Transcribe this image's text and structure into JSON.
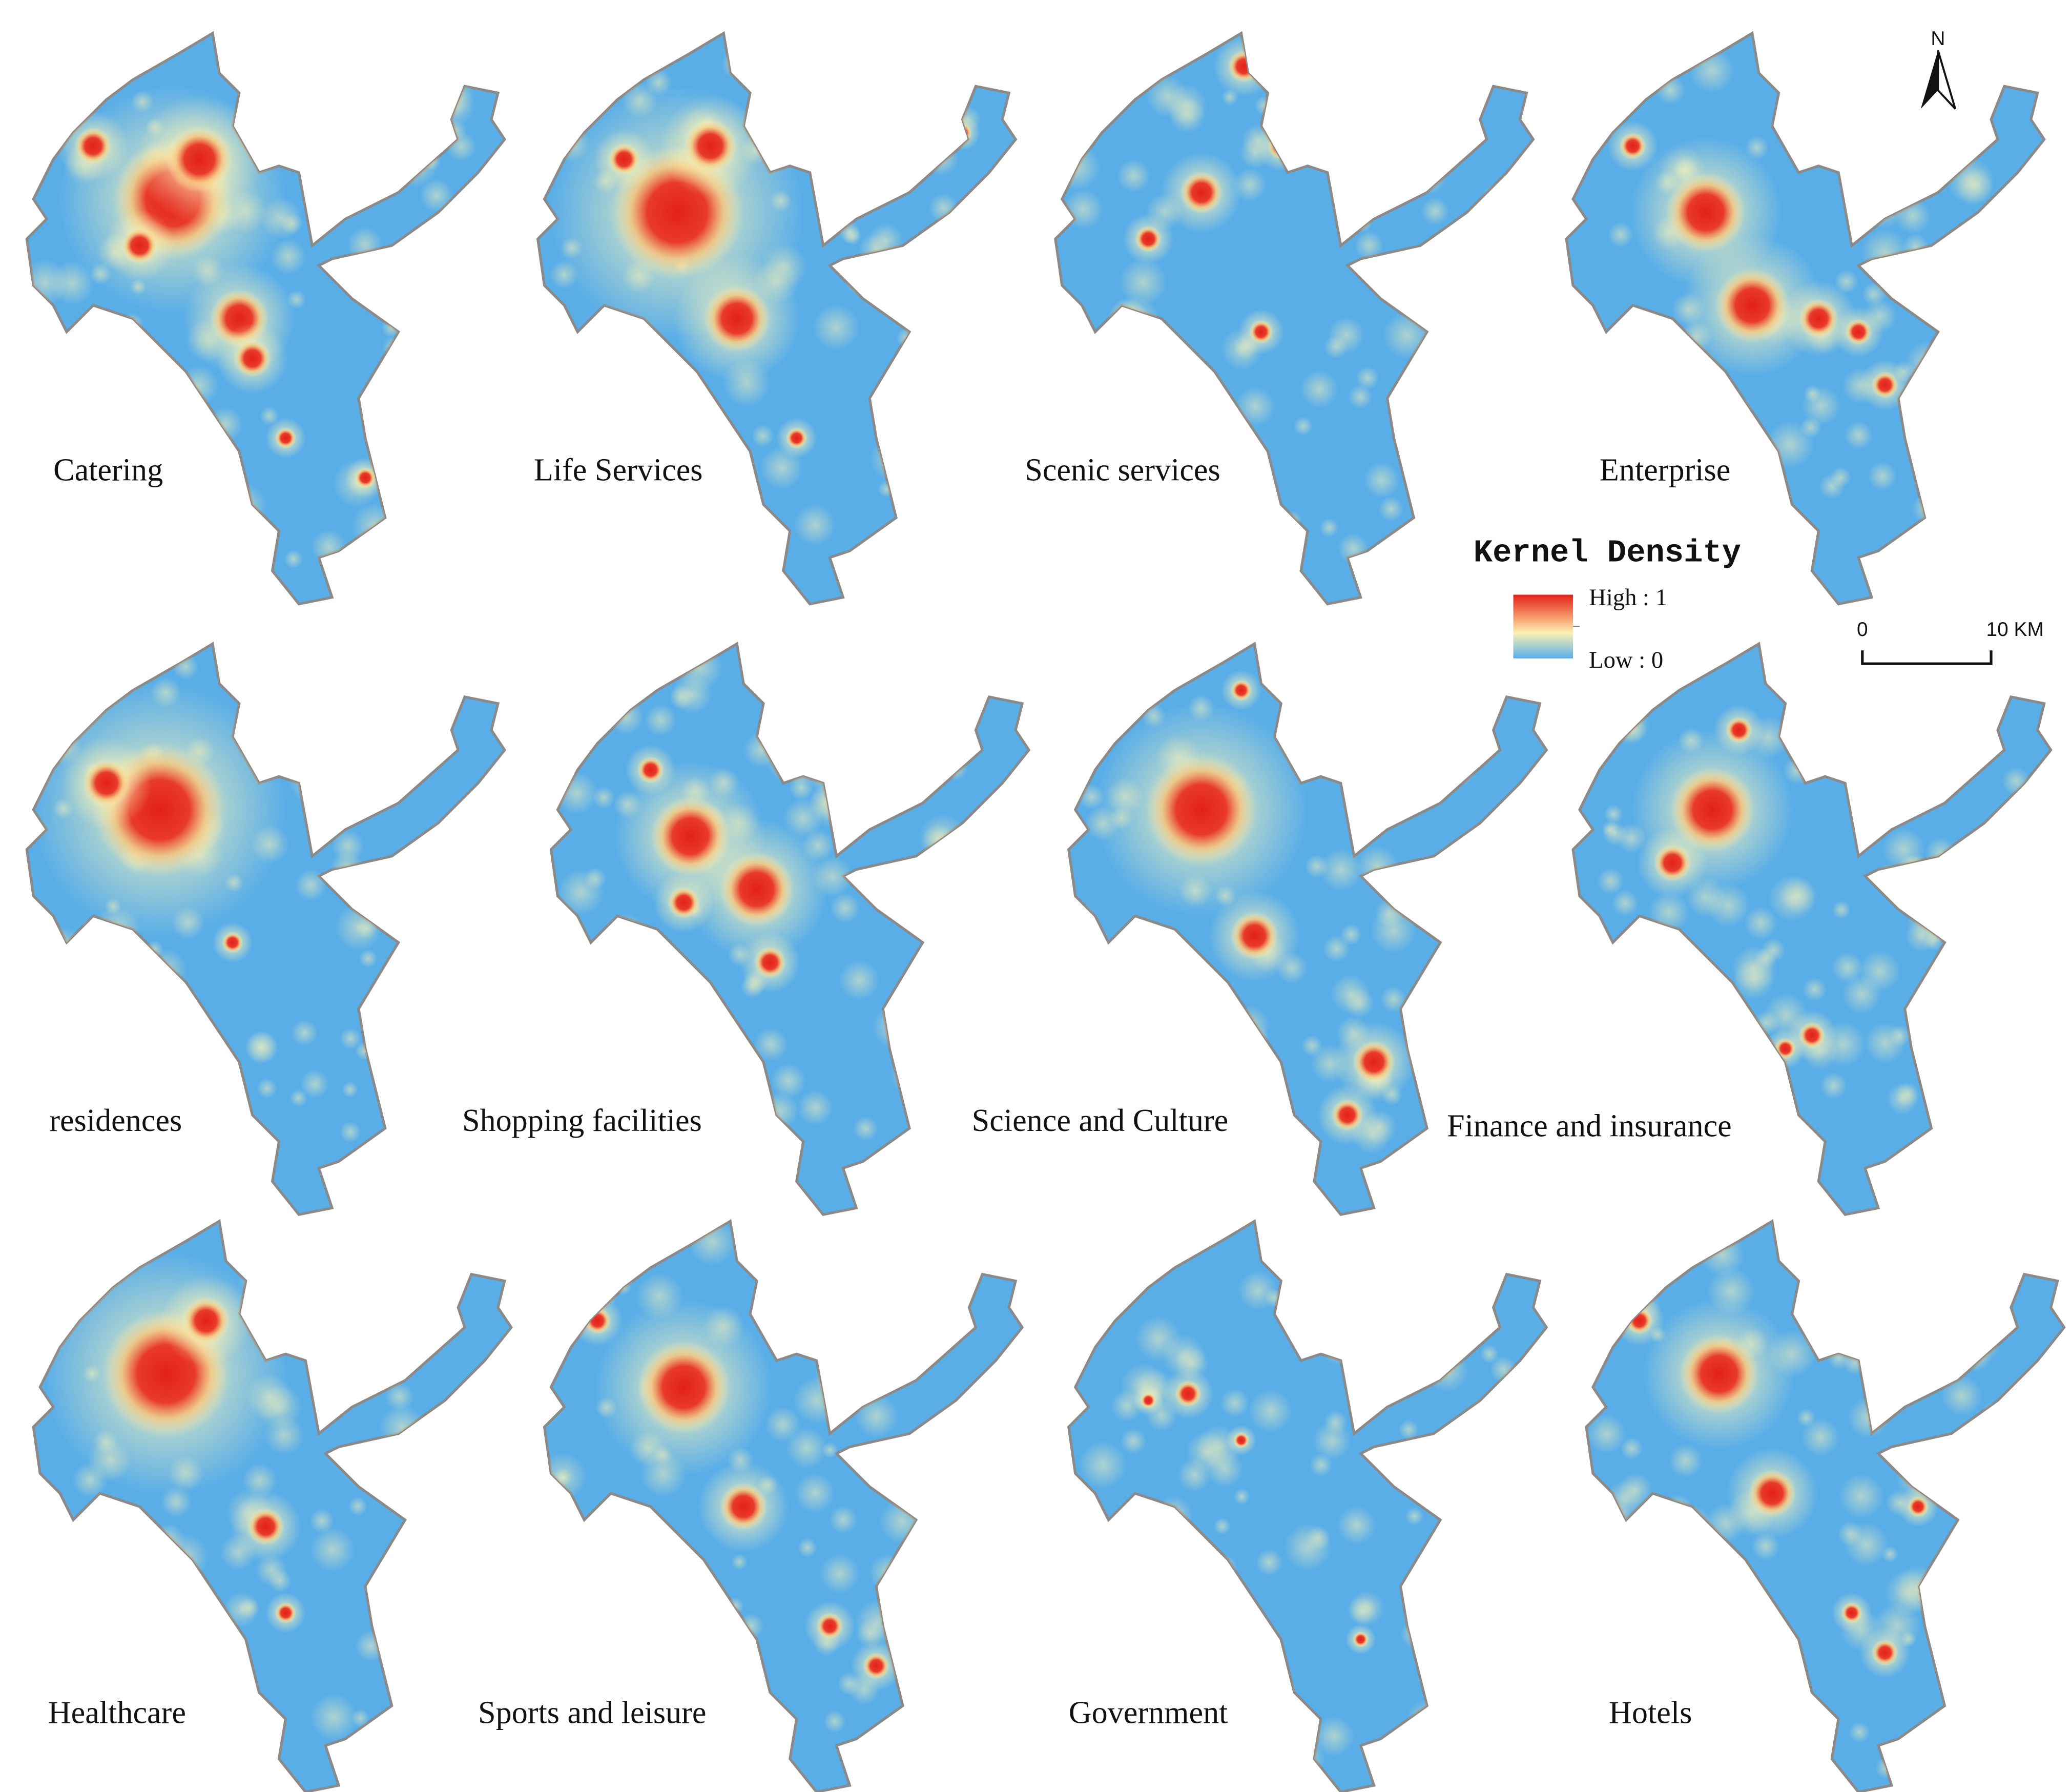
{
  "panels": [
    {
      "label": "Catering"
    },
    {
      "label": "Life Services"
    },
    {
      "label": "Scenic services"
    },
    {
      "label": "Enterprise"
    },
    {
      "label": "residences"
    },
    {
      "label": "Shopping facilities"
    },
    {
      "label": "Science and Culture"
    },
    {
      "label": "Finance and insurance"
    },
    {
      "label": "Healthcare"
    },
    {
      "label": "Sports and leisure"
    },
    {
      "label": "Government"
    },
    {
      "label": "Hotels"
    }
  ],
  "legend": {
    "title": "Kernel Density",
    "high": "High : 1",
    "low": "Low : 0"
  },
  "scale_bar": {
    "start": "0",
    "end": "10 KM"
  },
  "north": "N"
}
